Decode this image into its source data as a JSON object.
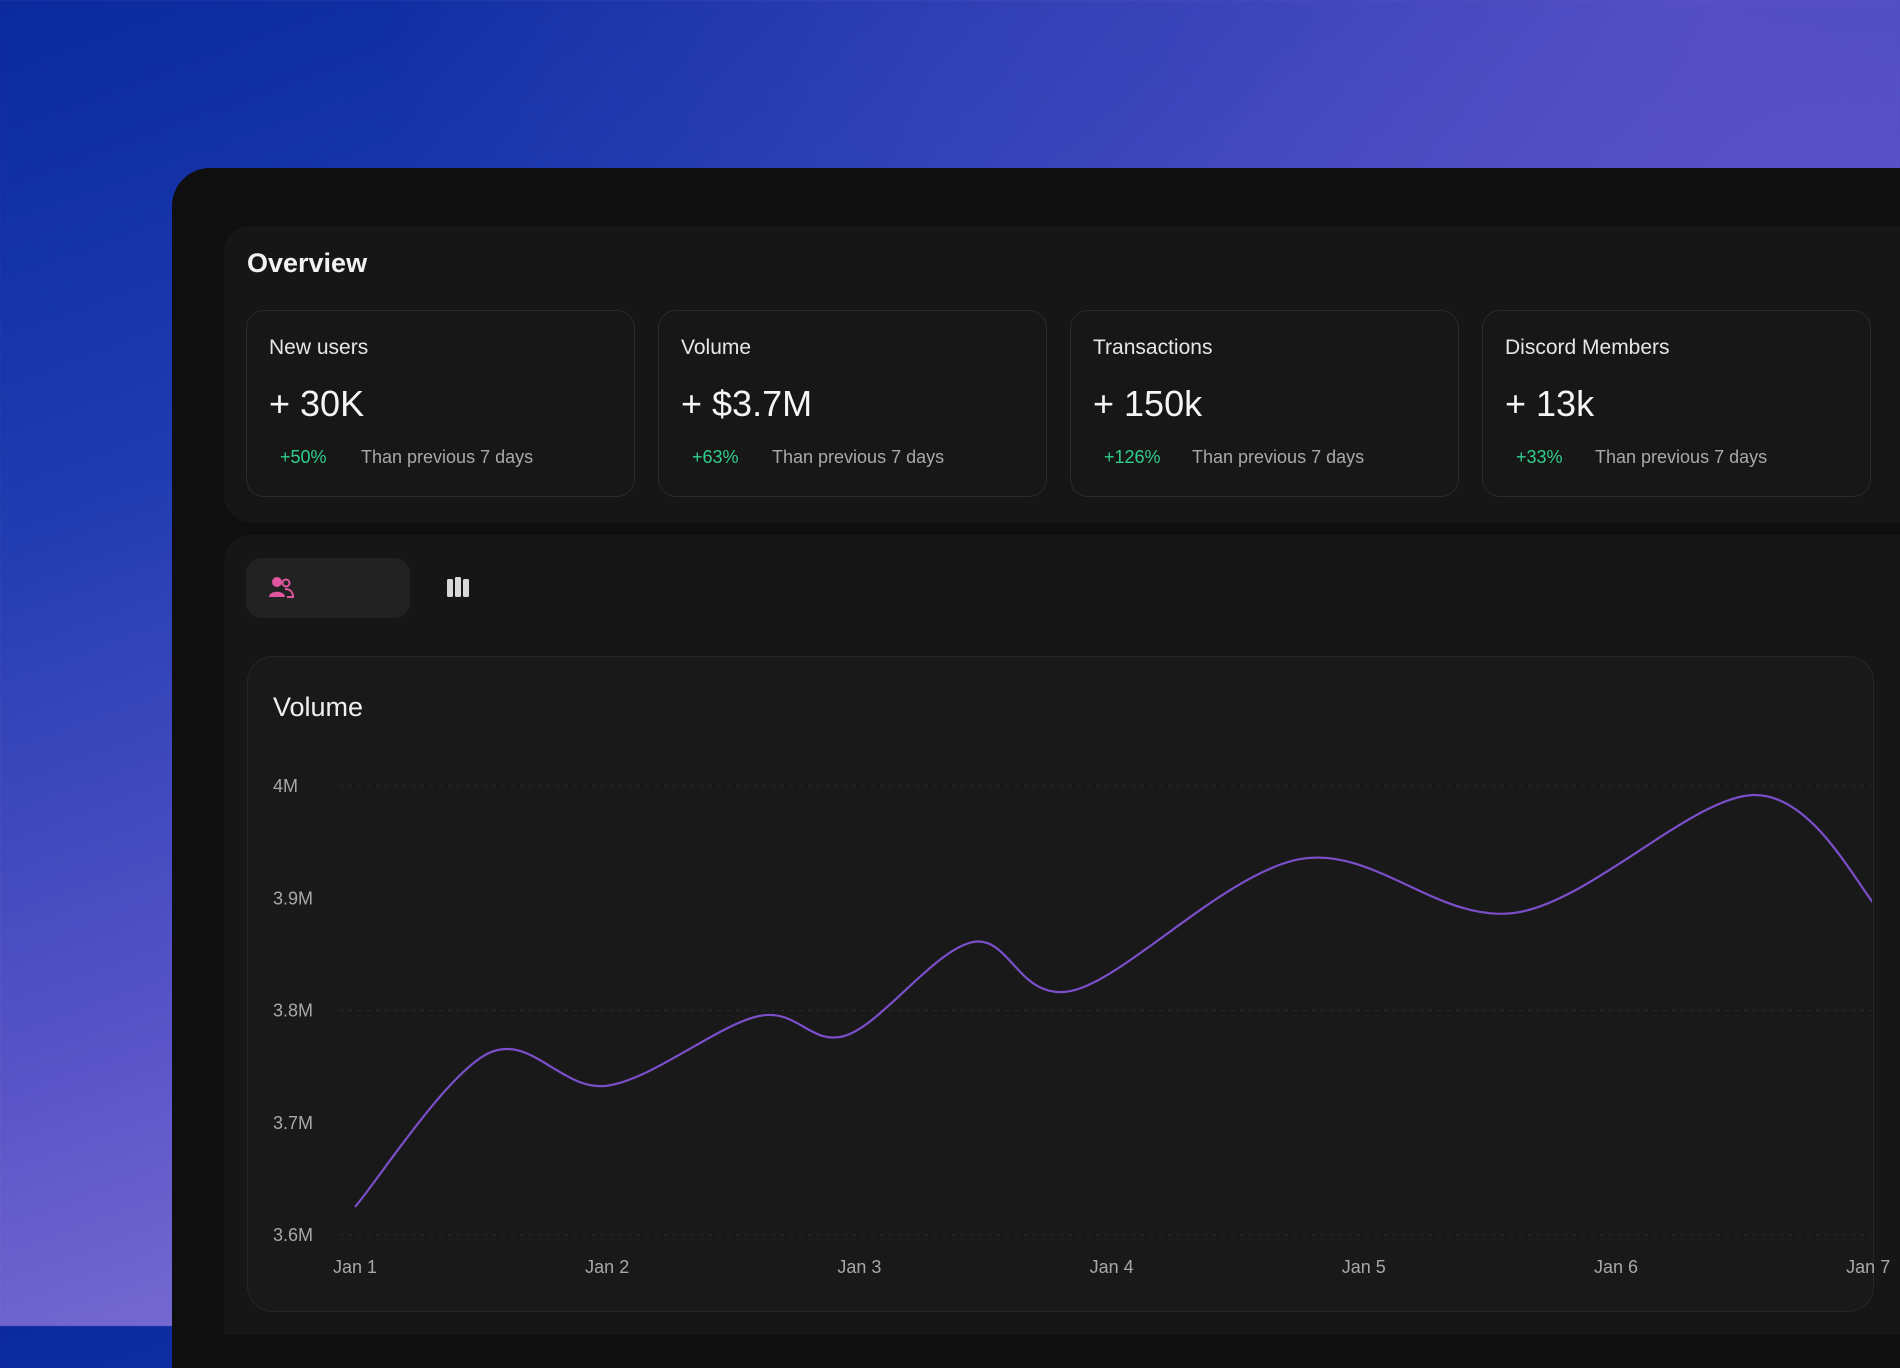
{
  "overview": {
    "title": "Overview",
    "cards": [
      {
        "label": "New users",
        "value": "+ 30K",
        "delta": "+50%",
        "note": "Than previous 7 days"
      },
      {
        "label": "Volume",
        "value": "+ $3.7M",
        "delta": "+63%",
        "note": "Than previous 7 days"
      },
      {
        "label": "Transactions",
        "value": "+ 150k",
        "delta": "+126%",
        "note": "Than previous 7 days"
      },
      {
        "label": "Discord Members",
        "value": "+ 13k",
        "delta": "+33%",
        "note": "Than previous 7 days"
      }
    ]
  },
  "tabs": [
    {
      "icon": "users-icon",
      "active": true
    },
    {
      "icon": "bar-columns-icon",
      "active": false
    }
  ],
  "colors": {
    "accent_pink": "#e0559d",
    "positive": "#2fcf8d",
    "line": "#7b4fc9"
  },
  "chart_data": {
    "type": "line",
    "title": "Volume",
    "x": [
      "Jan 1",
      "Jan 1.5",
      "Jan 2",
      "Jan 2.6",
      "Jan 2.95",
      "Jan 3.45",
      "Jan 3.85",
      "Jan 4.75",
      "Jan 5.6",
      "Jan 6.55",
      "Jan 7"
    ],
    "x_tick_labels": [
      "Jan 1",
      "Jan 2",
      "Jan 3",
      "Jan 4",
      "Jan 5",
      "Jan 6",
      "Jan 7"
    ],
    "y_tick_labels": [
      "4M",
      "3.9M",
      "3.8M",
      "3.7M",
      "3.6M"
    ],
    "series": [
      {
        "x_index": [
          0,
          0.53,
          1.0,
          1.6,
          1.95,
          2.45,
          2.85,
          3.75,
          4.6,
          5.55,
          6.05
        ],
        "values": [
          3.625,
          3.762,
          3.733,
          3.795,
          3.778,
          3.861,
          3.818,
          3.935,
          3.887,
          3.992,
          3.888
        ]
      }
    ],
    "ylim": [
      3.6,
      4.0
    ],
    "grid": true
  }
}
